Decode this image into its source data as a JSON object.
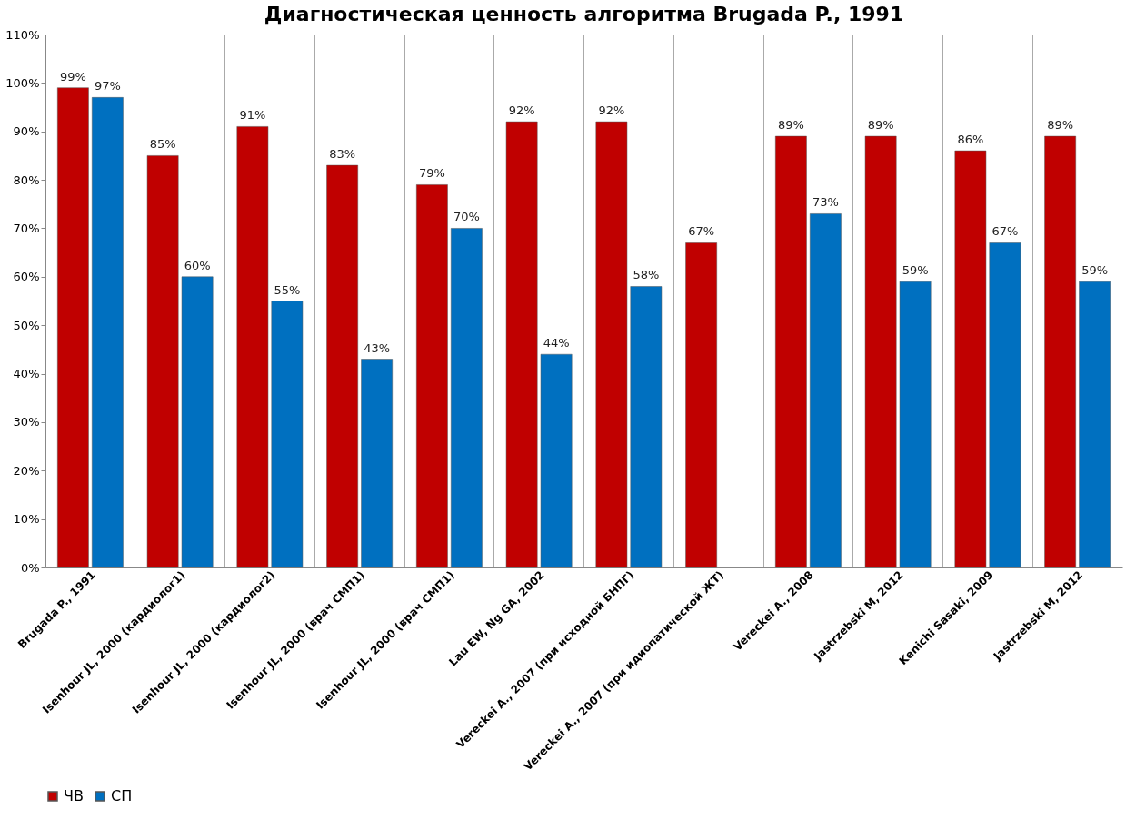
{
  "chart_data": {
    "type": "bar",
    "title": "Диагностическая ценность алгоритма Brugada P., 1991",
    "categories": [
      "Brugada P., 1991",
      "Isenhour JL, 2000 (кардиолог1)",
      "Isenhour JL, 2000 (кардиолог2)",
      "Isenhour JL, 2000 (врач СМП1)",
      "Isenhour JL, 2000 (врач СМП1)",
      "Lau EW, Ng GA, 2002",
      "Vereckei A., 2007 (при исходной БНПГ)",
      "Vereckei A., 2007 (при идиопатической ЖТ)",
      "Vereckei A., 2008",
      "Jastrzebski M, 2012",
      "Kenichi Sasaki, 2009",
      "Jastrzebski M, 2012"
    ],
    "series": [
      {
        "name": "ЧВ",
        "color": "#c00000",
        "values": [
          99,
          85,
          91,
          83,
          79,
          92,
          92,
          67,
          89,
          89,
          86,
          89
        ],
        "value_labels": [
          "99%",
          "85%",
          "91%",
          "83%",
          "79%",
          "92%",
          "92%",
          "67%",
          "89%",
          "89%",
          "86%",
          "89%"
        ]
      },
      {
        "name": "СП",
        "color": "#0070c0",
        "values": [
          97,
          60,
          55,
          43,
          70,
          44,
          58,
          null,
          73,
          59,
          67,
          59
        ],
        "value_labels": [
          "97%",
          "60%",
          "55%",
          "43%",
          "70%",
          "44%",
          "58%",
          null,
          "73%",
          "59%",
          "67%",
          "59%"
        ]
      }
    ],
    "ylim": [
      0,
      110
    ],
    "yticks": [
      {
        "value": 0,
        "label": "0%"
      },
      {
        "value": 10,
        "label": "10%"
      },
      {
        "value": 20,
        "label": "20%"
      },
      {
        "value": 30,
        "label": "30%"
      },
      {
        "value": 40,
        "label": "40%"
      },
      {
        "value": 50,
        "label": "50%"
      },
      {
        "value": 60,
        "label": "60%"
      },
      {
        "value": 70,
        "label": "70%"
      },
      {
        "value": 80,
        "label": "80%"
      },
      {
        "value": 90,
        "label": "90%"
      },
      {
        "value": 100,
        "label": "100%"
      },
      {
        "value": 110,
        "label": "110%"
      }
    ],
    "grid": "x",
    "legend": "bottom"
  }
}
